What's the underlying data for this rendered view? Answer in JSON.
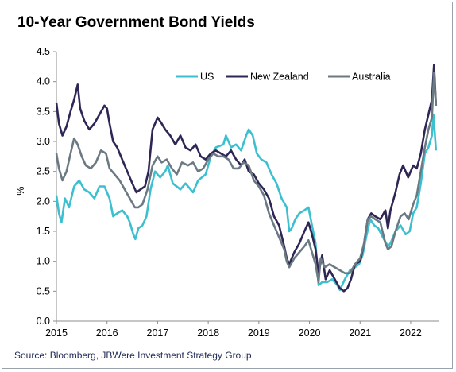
{
  "title": "10-Year Government Bond Yields",
  "source": "Source: Bloomberg, JBWere Investment Strategy Group",
  "chart_data": {
    "type": "line",
    "title": "10-Year Government Bond Yields",
    "xlabel": "",
    "ylabel": "%",
    "xlim": [
      2015.0,
      2022.55
    ],
    "ylim": [
      0,
      4.5
    ],
    "x_ticks": [
      "2015",
      "2016",
      "2017",
      "2018",
      "2019",
      "2020",
      "2021",
      "2022"
    ],
    "y_ticks": [
      "0.0",
      "0.5",
      "1.0",
      "1.5",
      "2.0",
      "2.5",
      "3.0",
      "3.5",
      "4.0",
      "4.5"
    ],
    "grid": false,
    "legend_position": "top-right",
    "series": [
      {
        "name": "US",
        "color": "#3cc0d0",
        "points": [
          [
            2015.0,
            2.1
          ],
          [
            2015.05,
            1.8
          ],
          [
            2015.1,
            1.65
          ],
          [
            2015.17,
            2.05
          ],
          [
            2015.25,
            1.9
          ],
          [
            2015.35,
            2.25
          ],
          [
            2015.45,
            2.35
          ],
          [
            2015.55,
            2.2
          ],
          [
            2015.65,
            2.15
          ],
          [
            2015.75,
            2.05
          ],
          [
            2015.85,
            2.25
          ],
          [
            2015.95,
            2.25
          ],
          [
            2016.05,
            2.05
          ],
          [
            2016.12,
            1.75
          ],
          [
            2016.2,
            1.8
          ],
          [
            2016.3,
            1.85
          ],
          [
            2016.4,
            1.75
          ],
          [
            2016.45,
            1.65
          ],
          [
            2016.52,
            1.45
          ],
          [
            2016.56,
            1.37
          ],
          [
            2016.62,
            1.55
          ],
          [
            2016.7,
            1.6
          ],
          [
            2016.78,
            1.75
          ],
          [
            2016.86,
            2.2
          ],
          [
            2016.95,
            2.5
          ],
          [
            2017.05,
            2.4
          ],
          [
            2017.15,
            2.5
          ],
          [
            2017.2,
            2.6
          ],
          [
            2017.3,
            2.3
          ],
          [
            2017.45,
            2.2
          ],
          [
            2017.55,
            2.3
          ],
          [
            2017.7,
            2.15
          ],
          [
            2017.8,
            2.35
          ],
          [
            2017.95,
            2.45
          ],
          [
            2018.05,
            2.75
          ],
          [
            2018.15,
            2.9
          ],
          [
            2018.3,
            2.95
          ],
          [
            2018.35,
            3.1
          ],
          [
            2018.45,
            2.9
          ],
          [
            2018.55,
            2.95
          ],
          [
            2018.65,
            2.85
          ],
          [
            2018.75,
            3.1
          ],
          [
            2018.8,
            3.2
          ],
          [
            2018.88,
            3.1
          ],
          [
            2018.96,
            2.8
          ],
          [
            2019.05,
            2.7
          ],
          [
            2019.15,
            2.65
          ],
          [
            2019.25,
            2.45
          ],
          [
            2019.35,
            2.3
          ],
          [
            2019.45,
            2.05
          ],
          [
            2019.55,
            1.9
          ],
          [
            2019.6,
            1.5
          ],
          [
            2019.65,
            1.55
          ],
          [
            2019.72,
            1.7
          ],
          [
            2019.8,
            1.8
          ],
          [
            2019.9,
            1.85
          ],
          [
            2019.98,
            1.9
          ],
          [
            2020.05,
            1.6
          ],
          [
            2020.12,
            1.3
          ],
          [
            2020.18,
            0.6
          ],
          [
            2020.25,
            0.65
          ],
          [
            2020.35,
            0.65
          ],
          [
            2020.45,
            0.7
          ],
          [
            2020.55,
            0.6
          ],
          [
            2020.6,
            0.52
          ],
          [
            2020.7,
            0.7
          ],
          [
            2020.8,
            0.85
          ],
          [
            2020.9,
            0.9
          ],
          [
            2020.98,
            0.95
          ],
          [
            2021.05,
            1.1
          ],
          [
            2021.12,
            1.4
          ],
          [
            2021.2,
            1.7
          ],
          [
            2021.28,
            1.6
          ],
          [
            2021.36,
            1.55
          ],
          [
            2021.45,
            1.4
          ],
          [
            2021.55,
            1.25
          ],
          [
            2021.6,
            1.3
          ],
          [
            2021.7,
            1.5
          ],
          [
            2021.8,
            1.6
          ],
          [
            2021.9,
            1.45
          ],
          [
            2021.98,
            1.5
          ],
          [
            2022.05,
            1.8
          ],
          [
            2022.12,
            1.9
          ],
          [
            2022.2,
            2.3
          ],
          [
            2022.28,
            2.8
          ],
          [
            2022.35,
            2.9
          ],
          [
            2022.42,
            3.1
          ],
          [
            2022.45,
            3.45
          ],
          [
            2022.5,
            2.85
          ]
        ]
      },
      {
        "name": "New Zealand",
        "color": "#2e2755",
        "points": [
          [
            2015.0,
            3.65
          ],
          [
            2015.05,
            3.3
          ],
          [
            2015.12,
            3.1
          ],
          [
            2015.2,
            3.25
          ],
          [
            2015.28,
            3.5
          ],
          [
            2015.35,
            3.7
          ],
          [
            2015.42,
            3.95
          ],
          [
            2015.47,
            3.55
          ],
          [
            2015.55,
            3.35
          ],
          [
            2015.65,
            3.2
          ],
          [
            2015.75,
            3.3
          ],
          [
            2015.85,
            3.45
          ],
          [
            2015.95,
            3.6
          ],
          [
            2016.0,
            3.55
          ],
          [
            2016.05,
            3.3
          ],
          [
            2016.12,
            3.0
          ],
          [
            2016.2,
            2.9
          ],
          [
            2016.3,
            2.7
          ],
          [
            2016.4,
            2.5
          ],
          [
            2016.5,
            2.3
          ],
          [
            2016.58,
            2.15
          ],
          [
            2016.66,
            2.2
          ],
          [
            2016.75,
            2.25
          ],
          [
            2016.82,
            2.5
          ],
          [
            2016.9,
            3.2
          ],
          [
            2017.0,
            3.4
          ],
          [
            2017.08,
            3.3
          ],
          [
            2017.15,
            3.2
          ],
          [
            2017.25,
            3.1
          ],
          [
            2017.35,
            2.95
          ],
          [
            2017.45,
            3.1
          ],
          [
            2017.55,
            2.9
          ],
          [
            2017.65,
            2.85
          ],
          [
            2017.75,
            2.95
          ],
          [
            2017.85,
            2.75
          ],
          [
            2017.95,
            2.7
          ],
          [
            2018.05,
            2.8
          ],
          [
            2018.15,
            2.85
          ],
          [
            2018.25,
            2.8
          ],
          [
            2018.35,
            2.75
          ],
          [
            2018.45,
            2.85
          ],
          [
            2018.55,
            2.7
          ],
          [
            2018.65,
            2.6
          ],
          [
            2018.72,
            2.7
          ],
          [
            2018.8,
            2.5
          ],
          [
            2018.9,
            2.45
          ],
          [
            2019.0,
            2.3
          ],
          [
            2019.1,
            2.2
          ],
          [
            2019.2,
            2.05
          ],
          [
            2019.3,
            1.75
          ],
          [
            2019.4,
            1.6
          ],
          [
            2019.5,
            1.25
          ],
          [
            2019.55,
            1.05
          ],
          [
            2019.6,
            0.95
          ],
          [
            2019.7,
            1.15
          ],
          [
            2019.8,
            1.3
          ],
          [
            2019.9,
            1.5
          ],
          [
            2019.98,
            1.65
          ],
          [
            2020.05,
            1.45
          ],
          [
            2020.12,
            1.2
          ],
          [
            2020.18,
            0.8
          ],
          [
            2020.25,
            1.1
          ],
          [
            2020.32,
            0.7
          ],
          [
            2020.4,
            0.85
          ],
          [
            2020.5,
            0.7
          ],
          [
            2020.6,
            0.55
          ],
          [
            2020.68,
            0.5
          ],
          [
            2020.75,
            0.55
          ],
          [
            2020.82,
            0.7
          ],
          [
            2020.9,
            0.95
          ],
          [
            2021.0,
            1.0
          ],
          [
            2021.08,
            1.3
          ],
          [
            2021.15,
            1.7
          ],
          [
            2021.22,
            1.8
          ],
          [
            2021.3,
            1.75
          ],
          [
            2021.4,
            1.7
          ],
          [
            2021.5,
            1.85
          ],
          [
            2021.55,
            1.55
          ],
          [
            2021.6,
            1.85
          ],
          [
            2021.7,
            2.15
          ],
          [
            2021.78,
            2.45
          ],
          [
            2021.85,
            2.6
          ],
          [
            2021.95,
            2.4
          ],
          [
            2022.05,
            2.6
          ],
          [
            2022.12,
            2.55
          ],
          [
            2022.2,
            2.8
          ],
          [
            2022.28,
            3.2
          ],
          [
            2022.35,
            3.45
          ],
          [
            2022.42,
            3.7
          ],
          [
            2022.46,
            4.28
          ],
          [
            2022.5,
            3.6
          ]
        ]
      },
      {
        "name": "Australia",
        "color": "#6b7a82",
        "points": [
          [
            2015.0,
            2.8
          ],
          [
            2015.05,
            2.55
          ],
          [
            2015.12,
            2.35
          ],
          [
            2015.2,
            2.5
          ],
          [
            2015.28,
            2.8
          ],
          [
            2015.35,
            3.05
          ],
          [
            2015.42,
            2.95
          ],
          [
            2015.5,
            2.75
          ],
          [
            2015.58,
            2.6
          ],
          [
            2015.68,
            2.55
          ],
          [
            2015.78,
            2.65
          ],
          [
            2015.88,
            2.85
          ],
          [
            2015.98,
            2.8
          ],
          [
            2016.05,
            2.55
          ],
          [
            2016.15,
            2.45
          ],
          [
            2016.25,
            2.35
          ],
          [
            2016.35,
            2.2
          ],
          [
            2016.45,
            2.05
          ],
          [
            2016.55,
            1.9
          ],
          [
            2016.62,
            1.9
          ],
          [
            2016.7,
            1.95
          ],
          [
            2016.8,
            2.2
          ],
          [
            2016.9,
            2.6
          ],
          [
            2017.0,
            2.75
          ],
          [
            2017.08,
            2.65
          ],
          [
            2017.18,
            2.7
          ],
          [
            2017.28,
            2.55
          ],
          [
            2017.38,
            2.45
          ],
          [
            2017.48,
            2.65
          ],
          [
            2017.6,
            2.6
          ],
          [
            2017.7,
            2.65
          ],
          [
            2017.8,
            2.5
          ],
          [
            2017.9,
            2.55
          ],
          [
            2018.0,
            2.7
          ],
          [
            2018.1,
            2.8
          ],
          [
            2018.2,
            2.75
          ],
          [
            2018.3,
            2.75
          ],
          [
            2018.4,
            2.7
          ],
          [
            2018.5,
            2.55
          ],
          [
            2018.6,
            2.55
          ],
          [
            2018.7,
            2.65
          ],
          [
            2018.8,
            2.6
          ],
          [
            2018.9,
            2.35
          ],
          [
            2019.0,
            2.25
          ],
          [
            2019.1,
            2.1
          ],
          [
            2019.2,
            1.8
          ],
          [
            2019.3,
            1.6
          ],
          [
            2019.4,
            1.4
          ],
          [
            2019.5,
            1.2
          ],
          [
            2019.55,
            1.0
          ],
          [
            2019.6,
            0.9
          ],
          [
            2019.7,
            1.05
          ],
          [
            2019.8,
            1.15
          ],
          [
            2019.9,
            1.25
          ],
          [
            2019.98,
            1.35
          ],
          [
            2020.05,
            1.15
          ],
          [
            2020.12,
            0.95
          ],
          [
            2020.18,
            0.65
          ],
          [
            2020.22,
            1.05
          ],
          [
            2020.3,
            0.9
          ],
          [
            2020.4,
            0.95
          ],
          [
            2020.5,
            0.9
          ],
          [
            2020.6,
            0.85
          ],
          [
            2020.7,
            0.8
          ],
          [
            2020.8,
            0.8
          ],
          [
            2020.9,
            0.95
          ],
          [
            2021.0,
            1.05
          ],
          [
            2021.08,
            1.3
          ],
          [
            2021.15,
            1.7
          ],
          [
            2021.22,
            1.75
          ],
          [
            2021.3,
            1.7
          ],
          [
            2021.4,
            1.65
          ],
          [
            2021.5,
            1.3
          ],
          [
            2021.55,
            1.2
          ],
          [
            2021.62,
            1.25
          ],
          [
            2021.7,
            1.5
          ],
          [
            2021.8,
            1.75
          ],
          [
            2021.88,
            1.8
          ],
          [
            2021.96,
            1.7
          ],
          [
            2022.05,
            1.95
          ],
          [
            2022.12,
            2.1
          ],
          [
            2022.2,
            2.5
          ],
          [
            2022.28,
            2.9
          ],
          [
            2022.35,
            3.2
          ],
          [
            2022.42,
            3.4
          ],
          [
            2022.46,
            4.15
          ],
          [
            2022.5,
            3.6
          ]
        ]
      }
    ]
  }
}
